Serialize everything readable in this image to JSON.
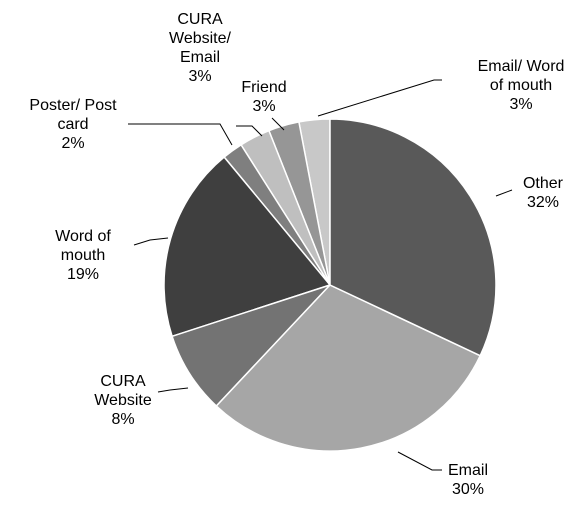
{
  "chart_data": {
    "type": "pie",
    "categories": [
      "Other",
      "Email",
      "CURA Website",
      "Word of mouth",
      "Poster/ Post card",
      "CURA Website/ Email",
      "Friend",
      "Email/ Word of mouth"
    ],
    "values": [
      32,
      30,
      8,
      19,
      2,
      3,
      3,
      3
    ],
    "value_labels": [
      "32%",
      "30%",
      "8%",
      "19%",
      "2%",
      "3%",
      "3%",
      "3%"
    ],
    "colors": [
      "#595959",
      "#a6a6a6",
      "#737373",
      "#3f3f3f",
      "#7f7f7f",
      "#bfbfbf",
      "#969696",
      "#c8c8c8"
    ]
  }
}
